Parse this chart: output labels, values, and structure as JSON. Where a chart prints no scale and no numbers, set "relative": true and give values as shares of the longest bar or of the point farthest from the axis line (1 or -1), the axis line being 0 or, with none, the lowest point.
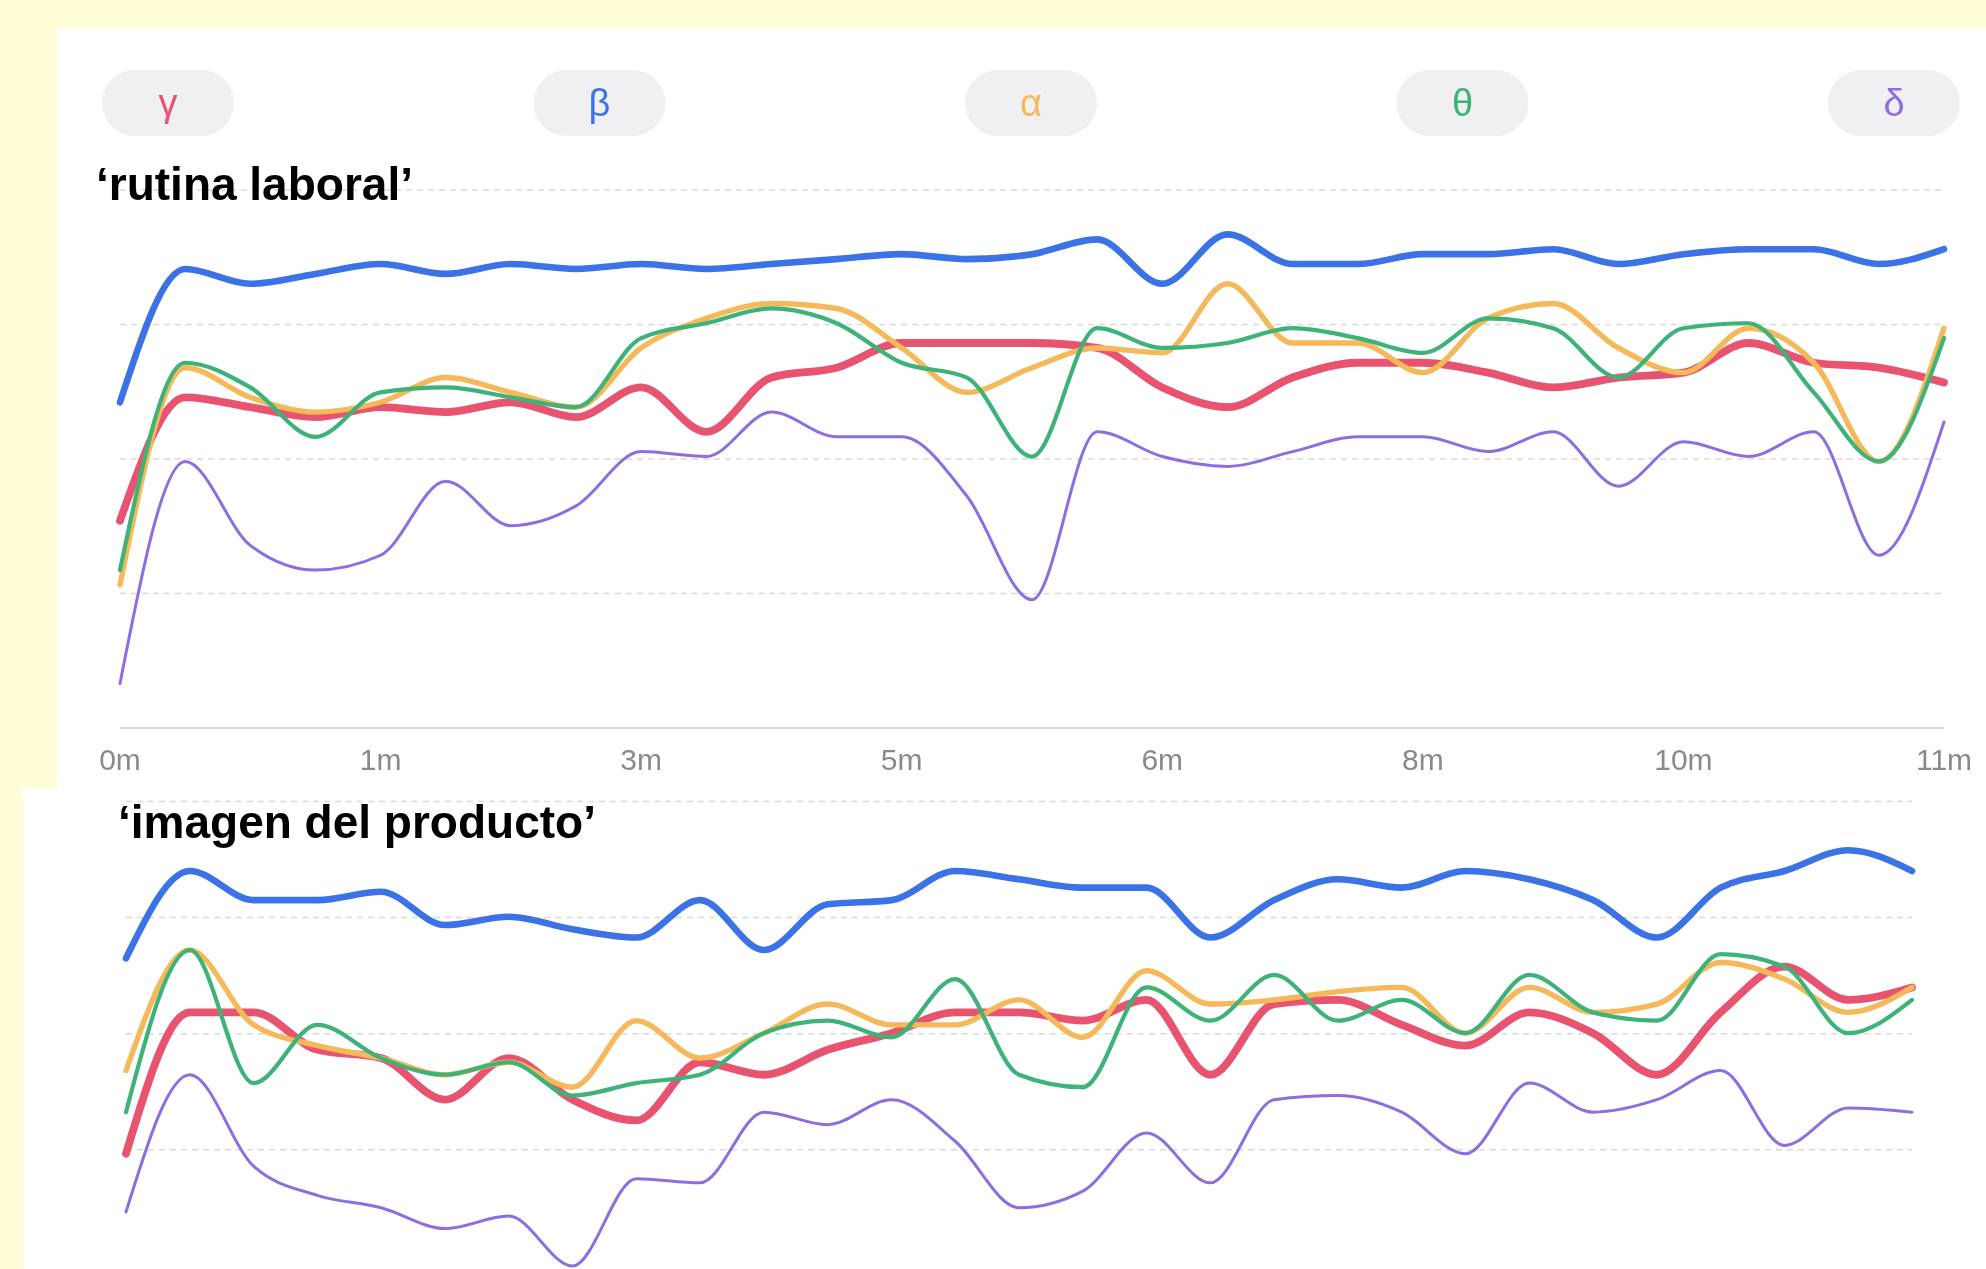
{
  "chart_data": [
    {
      "type": "line",
      "title": "‘rutina laboral’",
      "relative": true,
      "grid": "y",
      "legend": "top",
      "line_style": "solid",
      "marker": "none",
      "categories": [
        "0m",
        null,
        null,
        null,
        "1m",
        null,
        null,
        null,
        "3m",
        null,
        null,
        null,
        "5m",
        null,
        null,
        null,
        "6m",
        null,
        null,
        null,
        "8m",
        null,
        null,
        null,
        "10m",
        null,
        null,
        null,
        "11m"
      ],
      "series": [
        {
          "name": "γ",
          "color": "#e8546f",
          "values": [
            0.42,
            0.67,
            0.65,
            0.63,
            0.65,
            0.64,
            0.66,
            0.63,
            0.69,
            0.6,
            0.71,
            0.73,
            0.78,
            0.78,
            0.78,
            0.77,
            0.69,
            0.65,
            0.71,
            0.74,
            0.74,
            0.72,
            0.69,
            0.71,
            0.72,
            0.78,
            0.74,
            0.73,
            0.7
          ]
        },
        {
          "name": "β",
          "color": "#3b73e6",
          "values": [
            0.66,
            0.93,
            0.9,
            0.92,
            0.94,
            0.92,
            0.94,
            0.93,
            0.94,
            0.93,
            0.94,
            0.95,
            0.96,
            0.95,
            0.96,
            0.99,
            0.9,
            1.0,
            0.94,
            0.94,
            0.96,
            0.96,
            0.97,
            0.94,
            0.96,
            0.97,
            0.97,
            0.94,
            0.97
          ]
        },
        {
          "name": "α",
          "color": "#f5b95a",
          "values": [
            0.29,
            0.73,
            0.67,
            0.64,
            0.66,
            0.71,
            0.68,
            0.65,
            0.77,
            0.83,
            0.86,
            0.85,
            0.77,
            0.68,
            0.73,
            0.77,
            0.76,
            0.9,
            0.78,
            0.78,
            0.72,
            0.83,
            0.86,
            0.77,
            0.72,
            0.81,
            0.74,
            0.54,
            0.81
          ]
        },
        {
          "name": "θ",
          "color": "#3db37a",
          "values": [
            0.32,
            0.74,
            0.69,
            0.59,
            0.68,
            0.69,
            0.67,
            0.65,
            0.79,
            0.82,
            0.85,
            0.82,
            0.74,
            0.71,
            0.55,
            0.81,
            0.77,
            0.78,
            0.81,
            0.79,
            0.76,
            0.83,
            0.81,
            0.71,
            0.81,
            0.82,
            0.68,
            0.54,
            0.79
          ]
        },
        {
          "name": "δ",
          "color": "#8b6fe0",
          "values": [
            0.09,
            0.54,
            0.37,
            0.32,
            0.35,
            0.5,
            0.41,
            0.45,
            0.56,
            0.55,
            0.64,
            0.59,
            0.59,
            0.47,
            0.26,
            0.6,
            0.55,
            0.53,
            0.56,
            0.59,
            0.59,
            0.56,
            0.6,
            0.49,
            0.58,
            0.55,
            0.6,
            0.35,
            0.62
          ]
        }
      ]
    },
    {
      "type": "line",
      "title": "‘imagen del producto’",
      "relative": true,
      "grid": "y",
      "line_style": "solid",
      "marker": "none",
      "categories": [
        null,
        null,
        null,
        null,
        null,
        null,
        null,
        null,
        null,
        null,
        null,
        null,
        null,
        null,
        null,
        null,
        null,
        null,
        null,
        null,
        null,
        null,
        null,
        null,
        null,
        null,
        null,
        null,
        null
      ],
      "series": [
        {
          "color": "#e8546f",
          "values": [
            0.27,
            0.61,
            0.61,
            0.52,
            0.5,
            0.4,
            0.5,
            0.4,
            0.35,
            0.49,
            0.46,
            0.52,
            0.56,
            0.61,
            0.61,
            0.59,
            0.64,
            0.46,
            0.63,
            0.64,
            0.58,
            0.53,
            0.61,
            0.56,
            0.46,
            0.61,
            0.72,
            0.64,
            0.67
          ]
        },
        {
          "color": "#3b73e6",
          "values": [
            0.74,
            0.95,
            0.88,
            0.88,
            0.9,
            0.82,
            0.84,
            0.81,
            0.79,
            0.88,
            0.76,
            0.87,
            0.88,
            0.95,
            0.93,
            0.91,
            0.91,
            0.79,
            0.88,
            0.93,
            0.91,
            0.95,
            0.93,
            0.88,
            0.79,
            0.91,
            0.95,
            1.0,
            0.95
          ]
        },
        {
          "color": "#f5b95a",
          "values": [
            0.47,
            0.76,
            0.58,
            0.53,
            0.5,
            0.46,
            0.49,
            0.43,
            0.59,
            0.5,
            0.56,
            0.63,
            0.58,
            0.58,
            0.64,
            0.55,
            0.71,
            0.63,
            0.64,
            0.66,
            0.67,
            0.56,
            0.67,
            0.61,
            0.63,
            0.73,
            0.69,
            0.61,
            0.67
          ]
        },
        {
          "color": "#3db37a",
          "values": [
            0.37,
            0.76,
            0.44,
            0.58,
            0.5,
            0.46,
            0.49,
            0.41,
            0.44,
            0.46,
            0.56,
            0.59,
            0.55,
            0.69,
            0.46,
            0.43,
            0.67,
            0.59,
            0.7,
            0.59,
            0.64,
            0.56,
            0.7,
            0.61,
            0.59,
            0.75,
            0.72,
            0.56,
            0.64
          ]
        },
        {
          "color": "#8b6fe0",
          "values": [
            0.13,
            0.46,
            0.24,
            0.17,
            0.14,
            0.09,
            0.12,
            0.0,
            0.21,
            0.2,
            0.37,
            0.34,
            0.4,
            0.3,
            0.14,
            0.18,
            0.32,
            0.2,
            0.4,
            0.41,
            0.37,
            0.27,
            0.44,
            0.37,
            0.4,
            0.47,
            0.29,
            0.38,
            0.37
          ]
        }
      ]
    }
  ]
}
